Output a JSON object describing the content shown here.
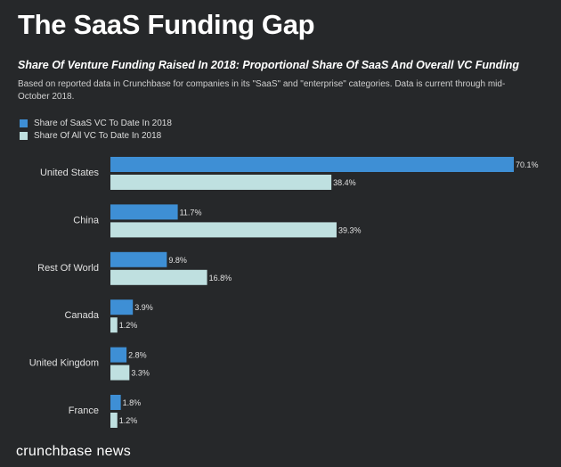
{
  "page": {
    "title": "The SaaS Funding Gap",
    "subtitle": "Share Of Venture Funding Raised In 2018: Proportional Share Of SaaS And Overall VC Funding",
    "description": "Based on reported data in Crunchbase for companies in its \"SaaS\" and \"enterprise\" categories. Data is current through mid- October 2018.",
    "brand": "crunchbase news"
  },
  "colors": {
    "background": "#26282a",
    "saas": "#3e8fd5",
    "all_vc": "#bfe0e0"
  },
  "chart_data": {
    "type": "bar",
    "orientation": "horizontal",
    "title": "The SaaS Funding Gap",
    "categories": [
      "United States",
      "China",
      "Rest Of World",
      "Canada",
      "United Kingdom",
      "France"
    ],
    "series": [
      {
        "name": "Share of SaaS VC To Date In 2018",
        "values": [
          70.1,
          11.7,
          9.8,
          3.9,
          2.8,
          1.8
        ]
      },
      {
        "name": "Share Of All VC To Date In 2018",
        "values": [
          38.4,
          39.3,
          16.8,
          1.2,
          3.3,
          1.2
        ]
      }
    ],
    "value_suffix": "%",
    "xlim": [
      0,
      70.1
    ],
    "legend": "top-left",
    "grid": false
  }
}
